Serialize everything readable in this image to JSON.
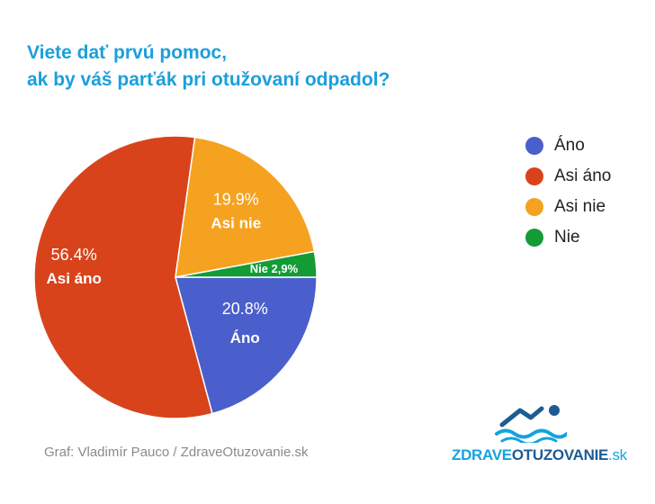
{
  "title": {
    "line1": "Viete dať prvú pomoc,",
    "line2": "ak by váš parťák pri otužovaní odpadol?"
  },
  "chart_data": {
    "type": "pie",
    "slices": [
      {
        "name": "Áno",
        "value": 20.8,
        "pct_label": "20.8%",
        "text": "Áno",
        "color": "#4a5fcb"
      },
      {
        "name": "Asi áno",
        "value": 56.4,
        "pct_label": "56.4%",
        "text": "Asi áno",
        "color": "#d8431c"
      },
      {
        "name": "Asi nie",
        "value": 19.9,
        "pct_label": "19.9%",
        "text": "Asi nie",
        "color": "#f5a221"
      },
      {
        "name": "Nie",
        "value": 2.9,
        "pct_label": "",
        "text": "Nie 2,9%",
        "color": "#139b36"
      }
    ],
    "legend": [
      "Áno",
      "Asi áno",
      "Asi nie",
      "Nie"
    ],
    "legend_position": "right"
  },
  "credit": "Graf: Vladimír Pauco / ZdraveOtuzovanie.sk",
  "logo": {
    "part1": "ZDRAVE",
    "part2": "OTUZOVANIE",
    "part3": ".sk",
    "icon": "swimmer-icon"
  }
}
